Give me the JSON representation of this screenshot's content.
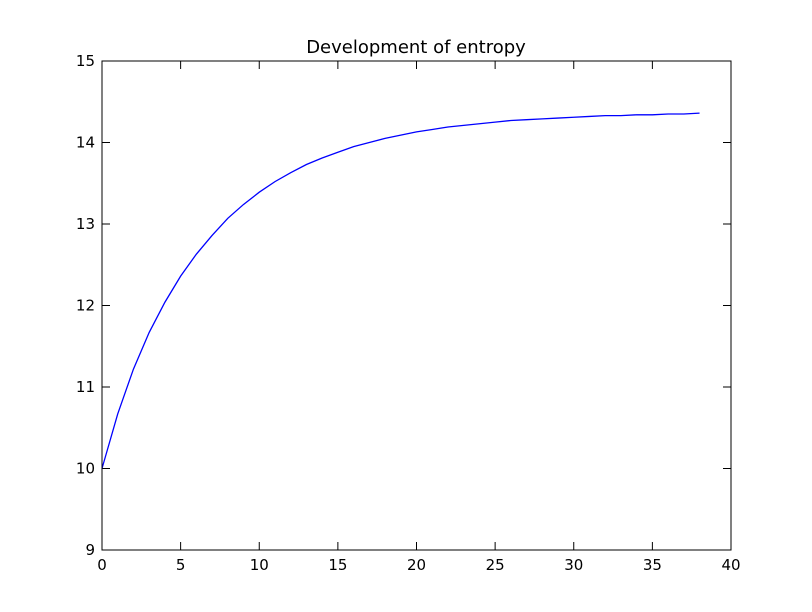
{
  "chart_data": {
    "type": "line",
    "title": "Development of entropy",
    "xlabel": "",
    "ylabel": "",
    "xlim": [
      0,
      40
    ],
    "ylim": [
      9,
      15
    ],
    "xticks": [
      0,
      5,
      10,
      15,
      20,
      25,
      30,
      35,
      40
    ],
    "yticks": [
      9,
      10,
      11,
      12,
      13,
      14,
      15
    ],
    "grid": false,
    "series": [
      {
        "color": "#0000ff",
        "x": [
          0,
          1,
          2,
          3,
          4,
          5,
          6,
          7,
          8,
          9,
          10,
          11,
          12,
          13,
          14,
          15,
          16,
          17,
          18,
          19,
          20,
          21,
          22,
          23,
          24,
          25,
          26,
          27,
          28,
          29,
          30,
          31,
          32,
          33,
          34,
          35,
          36,
          37,
          38
        ],
        "y": [
          10.0,
          10.67,
          11.22,
          11.67,
          12.04,
          12.36,
          12.63,
          12.86,
          13.07,
          13.24,
          13.39,
          13.52,
          13.63,
          13.73,
          13.81,
          13.88,
          13.95,
          14.0,
          14.05,
          14.09,
          14.13,
          14.16,
          14.19,
          14.21,
          14.23,
          14.25,
          14.27,
          14.28,
          14.29,
          14.3,
          14.31,
          14.32,
          14.33,
          14.33,
          14.34,
          14.34,
          14.35,
          14.35,
          14.36
        ]
      }
    ]
  }
}
